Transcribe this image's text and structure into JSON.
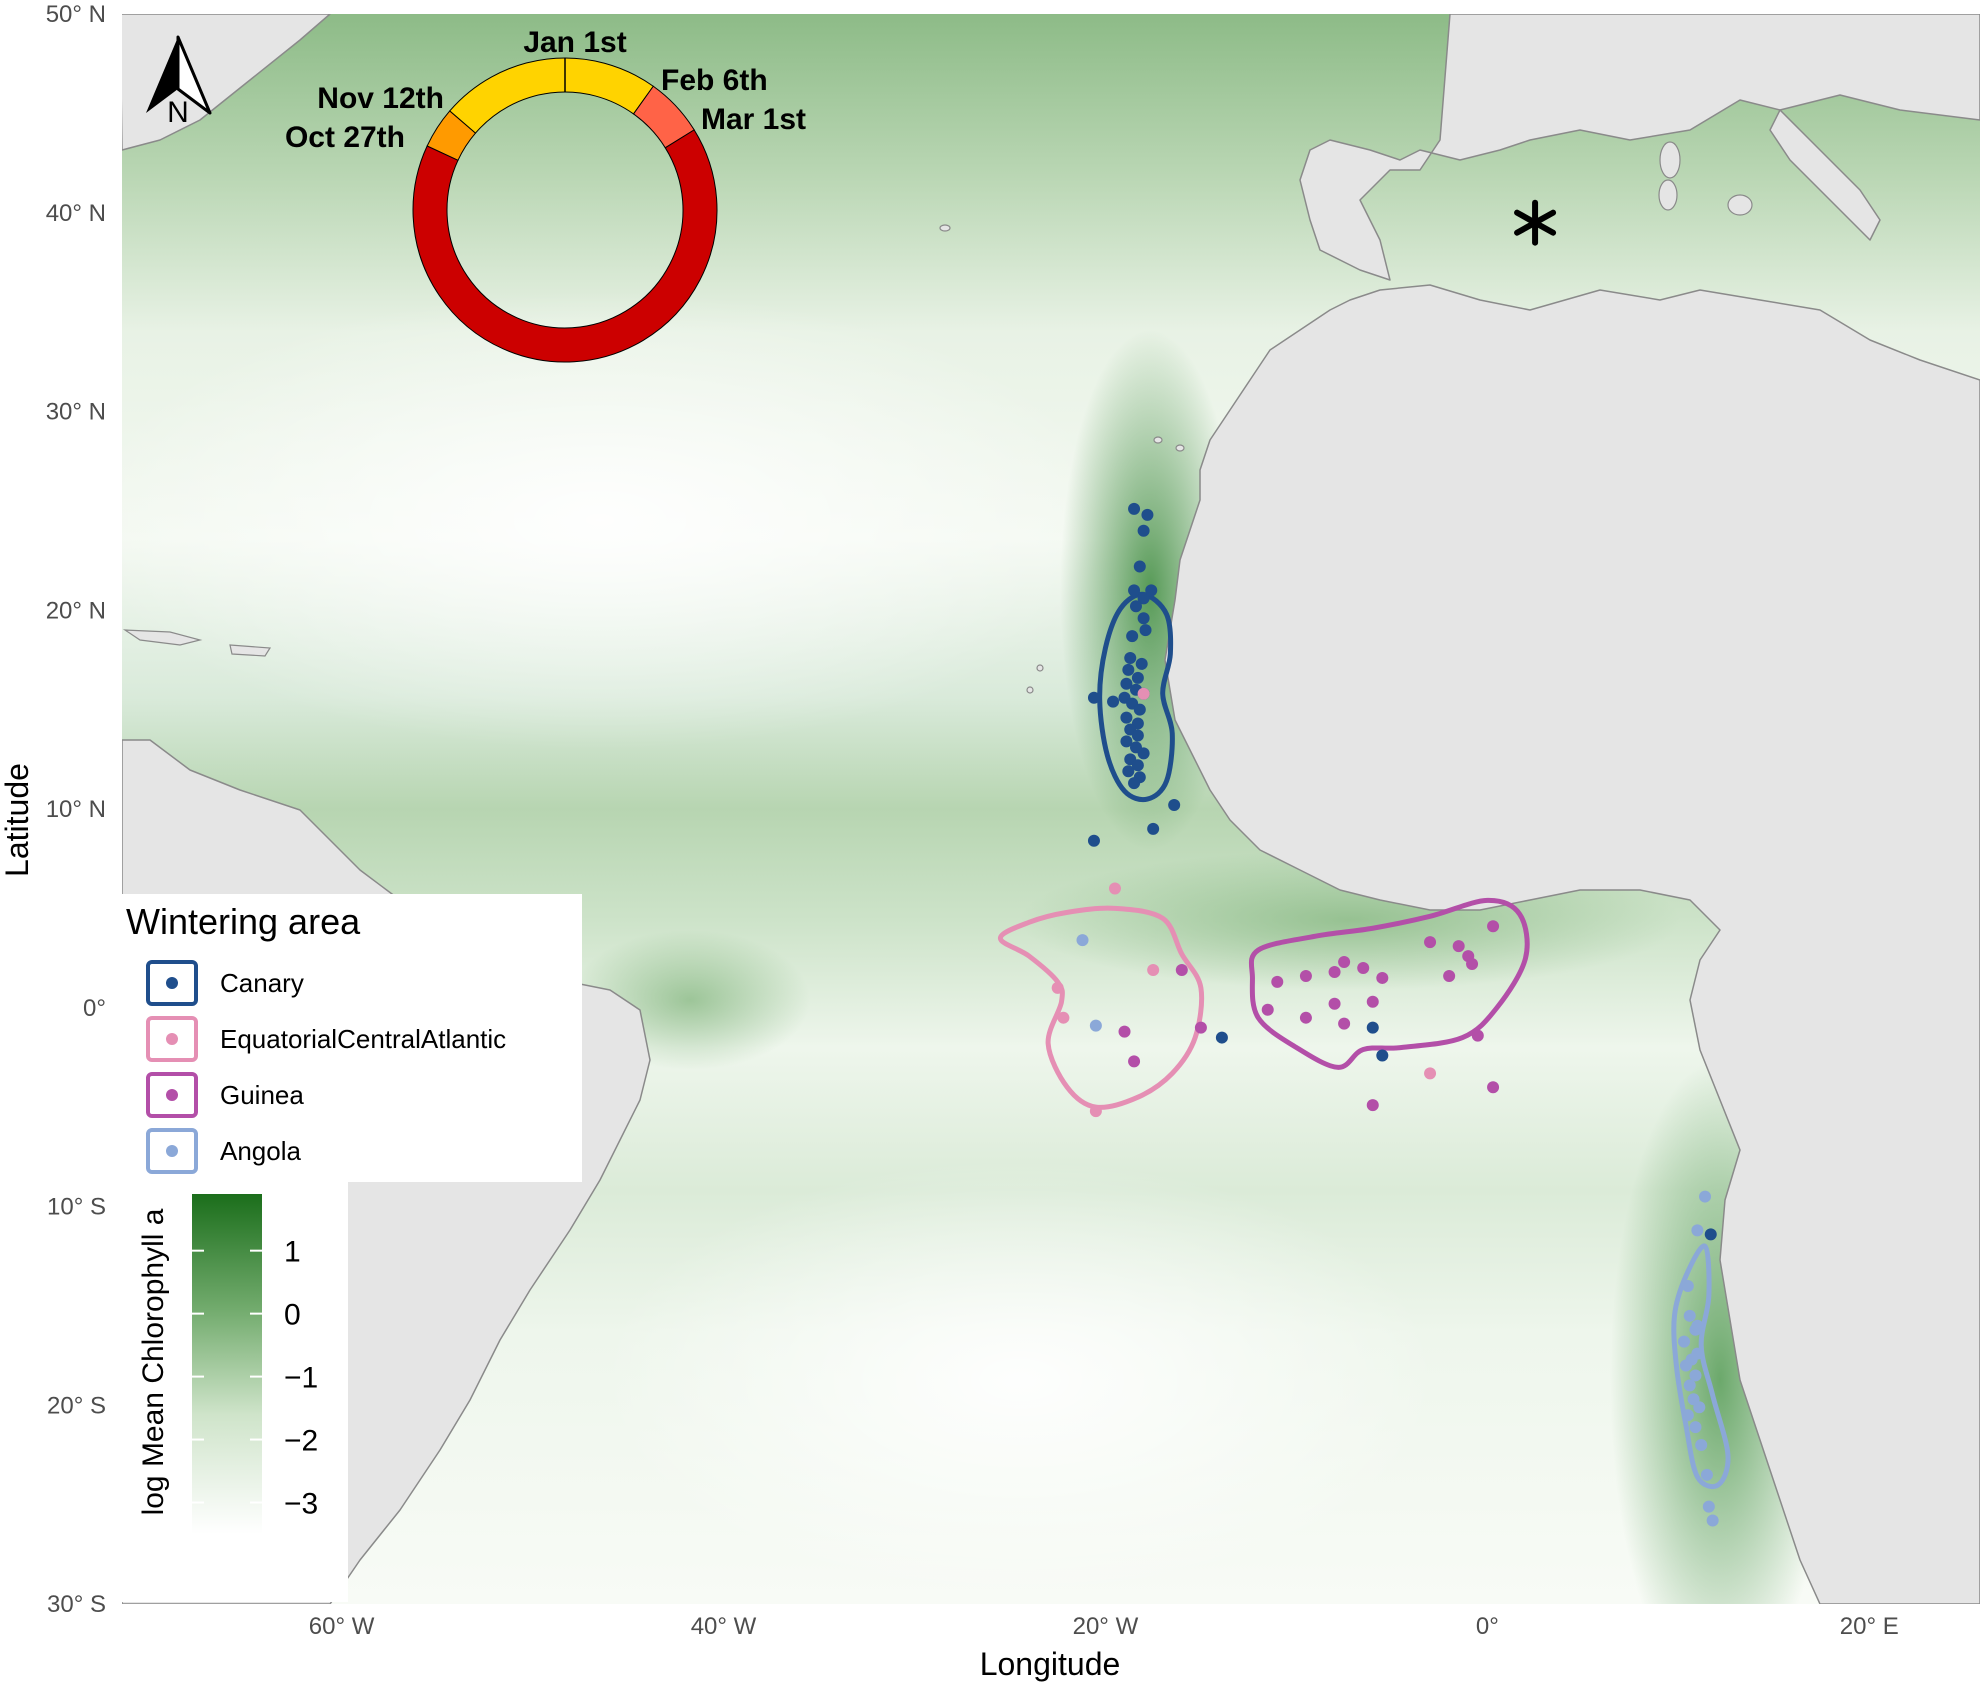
{
  "axes": {
    "xlabel": "Longitude",
    "ylabel": "Latitude",
    "x_ticks": [
      {
        "lon": -60,
        "label": "60° W"
      },
      {
        "lon": -40,
        "label": "40° W"
      },
      {
        "lon": -20,
        "label": "20° W"
      },
      {
        "lon": 0,
        "label": "0°"
      },
      {
        "lon": 20,
        "label": "20° E"
      }
    ],
    "y_ticks": [
      {
        "lat": 50,
        "label": "50° N"
      },
      {
        "lat": 40,
        "label": "40° N"
      },
      {
        "lat": 30,
        "label": "30° N"
      },
      {
        "lat": 20,
        "label": "20° N"
      },
      {
        "lat": 10,
        "label": "10° N"
      },
      {
        "lat": 0,
        "label": "0°"
      },
      {
        "lat": -10,
        "label": "10° S"
      },
      {
        "lat": -20,
        "label": "20° S"
      },
      {
        "lat": -30,
        "label": "30° S"
      }
    ],
    "lon_range": [
      -71.5,
      25.8
    ],
    "lat_range": [
      -30,
      50
    ]
  },
  "north_arrow": {
    "label": "N"
  },
  "colony_marker": {
    "symbol": "*",
    "lon": 2.5,
    "lat": 39.5
  },
  "phenology_ring": {
    "labels": {
      "jan": "Jan 1st",
      "feb": "Feb 6th",
      "mar": "Mar 1st",
      "nov": "Nov 12th",
      "oct": "Oct 27th"
    },
    "segments": [
      {
        "from": "Oct 27th",
        "to": "Nov 12th",
        "color": "#ff9a00"
      },
      {
        "from": "Nov 12th",
        "to": "Feb 6th",
        "color": "#ffd300"
      },
      {
        "from": "Feb 6th",
        "to": "Mar 1st",
        "color": "#ff6347"
      },
      {
        "from": "Mar 1st",
        "to": "Oct 27th",
        "color": "#cc0000"
      }
    ]
  },
  "legend": {
    "title": "Wintering area",
    "items": [
      {
        "label": "Canary",
        "color": "#1f4e8c"
      },
      {
        "label": "EquatorialCentralAtlantic",
        "color": "#e58fb4"
      },
      {
        "label": "Guinea",
        "color": "#b34fa8"
      },
      {
        "label": "Angola",
        "color": "#8ba8d8"
      }
    ]
  },
  "colorbar": {
    "title": "log Mean Chlorophyll a",
    "range": [
      -3.5,
      1.9
    ],
    "ticks": [
      {
        "value": 1,
        "label": "1"
      },
      {
        "value": 0,
        "label": "0"
      },
      {
        "value": -1,
        "label": "−1"
      },
      {
        "value": -2,
        "label": "−2"
      },
      {
        "value": -3,
        "label": "−3"
      }
    ],
    "color_low": "#ffffff",
    "color_high": "#1b6e1b"
  },
  "colors": {
    "land": "#e5e5e5",
    "ocean": "#dfeedd",
    "ocean_dark": "#5c9a5c",
    "coast": "#8a8a8a"
  },
  "chart_data": {
    "type": "scatter",
    "xlabel": "Longitude",
    "ylabel": "Latitude",
    "xlim": [
      -71.5,
      25.8
    ],
    "ylim": [
      -30,
      50
    ],
    "series": [
      {
        "name": "Canary",
        "color": "#1f4e8c",
        "points": [
          [
            -18.5,
            25.1
          ],
          [
            -17.8,
            24.8
          ],
          [
            -18.0,
            24.0
          ],
          [
            -18.2,
            22.2
          ],
          [
            -18.5,
            21.0
          ],
          [
            -18.0,
            20.6
          ],
          [
            -17.6,
            21.0
          ],
          [
            -18.4,
            20.2
          ],
          [
            -18.0,
            19.6
          ],
          [
            -17.9,
            19.0
          ],
          [
            -18.6,
            18.7
          ],
          [
            -18.7,
            17.6
          ],
          [
            -18.1,
            17.3
          ],
          [
            -18.8,
            17.0
          ],
          [
            -18.3,
            16.6
          ],
          [
            -18.9,
            16.3
          ],
          [
            -18.4,
            16.0
          ],
          [
            -18.0,
            15.8
          ],
          [
            -19.0,
            15.6
          ],
          [
            -18.6,
            15.3
          ],
          [
            -20.6,
            15.6
          ],
          [
            -19.6,
            15.4
          ],
          [
            -18.2,
            15.0
          ],
          [
            -18.9,
            14.6
          ],
          [
            -18.3,
            14.3
          ],
          [
            -18.7,
            14.0
          ],
          [
            -18.3,
            13.7
          ],
          [
            -18.9,
            13.4
          ],
          [
            -18.4,
            13.1
          ],
          [
            -18.0,
            12.8
          ],
          [
            -18.7,
            12.5
          ],
          [
            -18.3,
            12.2
          ],
          [
            -18.8,
            11.9
          ],
          [
            -18.2,
            11.6
          ],
          [
            -18.5,
            11.3
          ],
          [
            -16.4,
            10.2
          ],
          [
            -17.5,
            9.0
          ],
          [
            -20.6,
            8.4
          ],
          [
            -13.9,
            -1.5
          ],
          [
            -6.0,
            -1.0
          ],
          [
            -5.5,
            -2.4
          ],
          [
            11.7,
            -11.4
          ]
        ]
      },
      {
        "name": "EquatorialCentralAtlantic",
        "color": "#e58fb4",
        "points": [
          [
            -19.5,
            6.0
          ],
          [
            -17.5,
            1.9
          ],
          [
            -22.5,
            1.0
          ],
          [
            -22.2,
            -0.5
          ],
          [
            -20.5,
            -5.2
          ],
          [
            -3.0,
            -3.3
          ],
          [
            -18.0,
            15.8
          ]
        ]
      },
      {
        "name": "Guinea",
        "color": "#b34fa8",
        "points": [
          [
            -16.0,
            1.9
          ],
          [
            -11.0,
            1.3
          ],
          [
            -9.5,
            1.6
          ],
          [
            -8.0,
            1.8
          ],
          [
            -7.5,
            2.3
          ],
          [
            -6.5,
            2.0
          ],
          [
            -5.5,
            1.5
          ],
          [
            -3.0,
            3.3
          ],
          [
            -1.5,
            3.1
          ],
          [
            -1.0,
            2.6
          ],
          [
            -0.8,
            2.2
          ],
          [
            0.3,
            4.1
          ],
          [
            -2.0,
            1.6
          ],
          [
            -6.0,
            0.3
          ],
          [
            -8.0,
            0.2
          ],
          [
            -9.5,
            -0.5
          ],
          [
            -11.5,
            -0.1
          ],
          [
            -7.5,
            -0.8
          ],
          [
            -19.0,
            -1.2
          ],
          [
            -15.0,
            -1.0
          ],
          [
            -18.5,
            -2.7
          ],
          [
            0.3,
            -4.0
          ],
          [
            -6.0,
            -4.9
          ],
          [
            -0.5,
            -1.4
          ]
        ]
      },
      {
        "name": "Angola",
        "color": "#8ba8d8",
        "points": [
          [
            -21.2,
            3.4
          ],
          [
            -20.5,
            -0.9
          ],
          [
            11.4,
            -9.5
          ],
          [
            11.0,
            -11.2
          ],
          [
            10.5,
            -14.0
          ],
          [
            10.6,
            -15.5
          ],
          [
            10.9,
            -16.2
          ],
          [
            10.3,
            -16.8
          ],
          [
            11.0,
            -17.4
          ],
          [
            10.4,
            -18.0
          ],
          [
            10.9,
            -18.5
          ],
          [
            10.6,
            -19.0
          ],
          [
            10.8,
            -19.7
          ],
          [
            11.1,
            -20.1
          ],
          [
            10.5,
            -20.5
          ],
          [
            10.9,
            -21.1
          ],
          [
            11.2,
            -22.0
          ],
          [
            11.5,
            -23.5
          ],
          [
            11.6,
            -25.1
          ],
          [
            11.8,
            -25.8
          ],
          [
            11.0,
            -16.0
          ],
          [
            10.7,
            -17.7
          ]
        ]
      }
    ],
    "home_ranges": [
      {
        "name": "Canary",
        "color": "#1f4e8c",
        "outline": [
          [
            -18.0,
            20.8
          ],
          [
            -16.8,
            19.8
          ],
          [
            -16.6,
            17.8
          ],
          [
            -17.0,
            15.8
          ],
          [
            -16.5,
            13.8
          ],
          [
            -16.8,
            11.4
          ],
          [
            -17.8,
            10.5
          ],
          [
            -19.0,
            10.9
          ],
          [
            -19.9,
            12.7
          ],
          [
            -20.3,
            15.5
          ],
          [
            -20.0,
            18.1
          ],
          [
            -19.2,
            20.1
          ]
        ]
      },
      {
        "name": "EquatorialCentralAtlantic",
        "color": "#e58fb4",
        "outline": [
          [
            -24.0,
            4.3
          ],
          [
            -22.0,
            4.8
          ],
          [
            -19.5,
            5.0
          ],
          [
            -17.0,
            4.5
          ],
          [
            -16.0,
            2.7
          ],
          [
            -15.0,
            1.0
          ],
          [
            -15.3,
            -1.5
          ],
          [
            -16.5,
            -3.3
          ],
          [
            -18.3,
            -4.5
          ],
          [
            -20.5,
            -5.0
          ],
          [
            -22.0,
            -4.0
          ],
          [
            -23.0,
            -1.8
          ],
          [
            -22.3,
            0.3
          ],
          [
            -22.5,
            1.3
          ],
          [
            -24.0,
            2.6
          ],
          [
            -25.5,
            3.5
          ]
        ]
      },
      {
        "name": "Guinea",
        "color": "#b34fa8",
        "outline": [
          [
            -12.0,
            2.9
          ],
          [
            -9.0,
            3.6
          ],
          [
            -6.0,
            4.0
          ],
          [
            -3.0,
            4.6
          ],
          [
            0.0,
            5.4
          ],
          [
            1.7,
            4.7
          ],
          [
            2.0,
            2.5
          ],
          [
            0.5,
            0.0
          ],
          [
            -1.3,
            -1.5
          ],
          [
            -4.5,
            -2.0
          ],
          [
            -6.5,
            -2.1
          ],
          [
            -7.8,
            -3.0
          ],
          [
            -10.0,
            -2.0
          ],
          [
            -12.0,
            -0.5
          ],
          [
            -12.3,
            1.5
          ]
        ]
      },
      {
        "name": "Angola",
        "color": "#8ba8d8",
        "outline": [
          [
            11.4,
            -12.0
          ],
          [
            11.6,
            -14.5
          ],
          [
            11.2,
            -17.0
          ],
          [
            11.8,
            -19.5
          ],
          [
            12.6,
            -22.5
          ],
          [
            12.1,
            -24.0
          ],
          [
            11.0,
            -23.6
          ],
          [
            10.4,
            -21.0
          ],
          [
            9.9,
            -18.0
          ],
          [
            9.8,
            -15.5
          ],
          [
            10.4,
            -13.5
          ]
        ]
      }
    ]
  }
}
